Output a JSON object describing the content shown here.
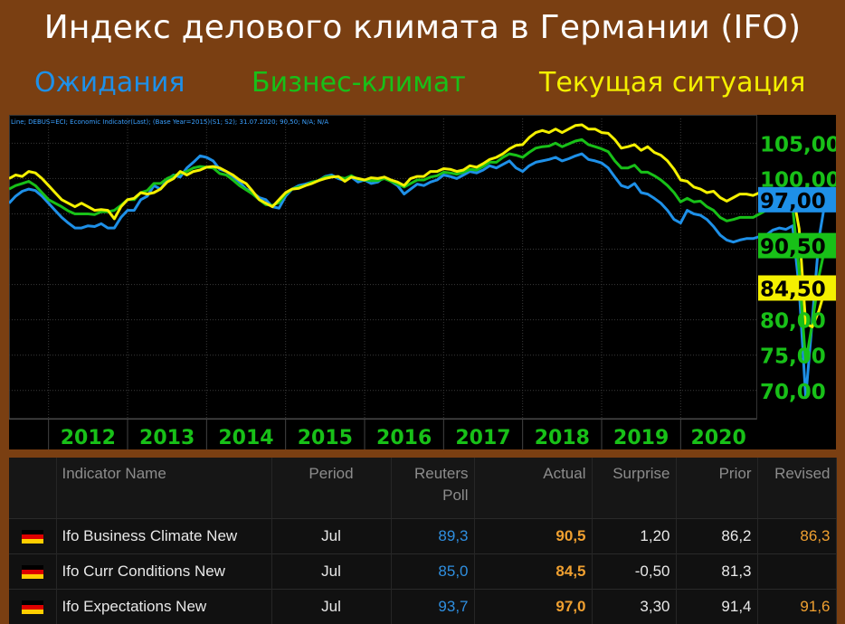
{
  "header": {
    "title": "Индекс делового климата в Германии (IFO)",
    "legend": [
      {
        "label": "Ожидания",
        "color": "#1e90e8"
      },
      {
        "label": "Бизнес-климат",
        "color": "#18c018"
      },
      {
        "label": "Текущая ситуация",
        "color": "#f4f000"
      }
    ]
  },
  "chart_info": "Line; DEBUS=ECI; Economic Indicator(Last); (Base Year=2015)(S1; S2); 31.07.2020; 90,50; N/A; N/A",
  "chart_data": {
    "type": "line",
    "x_start": "2011-07",
    "x_end": "2020-07",
    "x_labels": [
      "2012",
      "2013",
      "2014",
      "2015",
      "2016",
      "2017",
      "2018",
      "2019",
      "2020"
    ],
    "y_ticks": [
      "70,00",
      "75,00",
      "80,00",
      "100,00",
      "105,00"
    ],
    "y_tick_values": [
      70,
      75,
      80,
      100,
      105
    ],
    "ylim": [
      66,
      108.5
    ],
    "grid": true,
    "last_value_labels": [
      {
        "text": "97,00",
        "value": 97.0,
        "bg": "#1e90e8",
        "fg": "#000000"
      },
      {
        "text": "90,50",
        "value": 90.5,
        "bg": "#18c018",
        "fg": "#000000"
      },
      {
        "text": "84,50",
        "value": 84.5,
        "bg": "#f4f000",
        "fg": "#000000"
      }
    ],
    "series": [
      {
        "color": "#1e90e8",
        "values": [
          96.5,
          97.5,
          98.2,
          98.5,
          98.3,
          97.5,
          96.5,
          95.5,
          94.5,
          93.7,
          93.0,
          93.0,
          93.3,
          93.2,
          93.6,
          93.0,
          93.0,
          94.5,
          95.5,
          95.5,
          97.0,
          97.5,
          99.0,
          98.5,
          99.8,
          100.5,
          100.2,
          101.5,
          102.3,
          103.2,
          103.0,
          102.5,
          101.3,
          101.0,
          100.3,
          99.5,
          98.5,
          98.0,
          97.3,
          97.0,
          96.0,
          95.8,
          97.5,
          98.5,
          99.0,
          99.2,
          99.5,
          99.7,
          100.3,
          100.5,
          100.0,
          99.7,
          100.2,
          99.5,
          99.8,
          99.3,
          99.5,
          100.2,
          99.6,
          99.0,
          97.8,
          98.5,
          99.2,
          99.0,
          99.5,
          99.8,
          100.5,
          100.3,
          100.0,
          100.5,
          101.0,
          100.8,
          101.2,
          101.8,
          101.5,
          102.0,
          102.5,
          101.5,
          101.0,
          101.8,
          102.3,
          102.5,
          102.7,
          103.0,
          102.5,
          102.8,
          103.2,
          103.5,
          102.7,
          102.5,
          102.2,
          101.5,
          100.2,
          99.0,
          98.7,
          99.3,
          98.0,
          97.8,
          97.2,
          96.5,
          95.5,
          94.2,
          93.7,
          95.5,
          95.0,
          94.8,
          94.2,
          93.2,
          92.0,
          91.3,
          91.0,
          91.3,
          91.5,
          91.5,
          91.8,
          92.0,
          92.7,
          93.0,
          92.8,
          93.3,
          84.5,
          69.0,
          80.0,
          91.5,
          97.0
        ]
      },
      {
        "color": "#18c018",
        "values": [
          98.5,
          99.0,
          99.3,
          99.6,
          99.0,
          98.0,
          97.0,
          96.5,
          96.0,
          95.4,
          95.0,
          95.0,
          95.0,
          94.9,
          95.3,
          95.3,
          95.5,
          96.2,
          97.0,
          97.0,
          98.0,
          98.3,
          99.3,
          99.3,
          100.0,
          100.4,
          100.7,
          101.0,
          101.5,
          101.7,
          101.6,
          101.5,
          100.7,
          100.5,
          99.8,
          99.0,
          98.4,
          97.8,
          97.0,
          96.3,
          96.2,
          96.6,
          97.8,
          98.5,
          98.8,
          99.0,
          99.5,
          99.7,
          100.2,
          100.3,
          100.2,
          100.0,
          100.4,
          99.9,
          99.8,
          99.7,
          99.7,
          100.0,
          99.6,
          99.2,
          98.8,
          99.3,
          99.8,
          99.8,
          100.2,
          100.4,
          100.9,
          100.8,
          100.6,
          100.9,
          101.3,
          101.2,
          101.7,
          102.3,
          102.3,
          103.0,
          103.5,
          103.3,
          103.0,
          103.7,
          104.3,
          104.5,
          104.6,
          105.0,
          104.5,
          104.9,
          105.3,
          105.5,
          104.8,
          104.5,
          104.2,
          103.8,
          102.5,
          101.5,
          101.5,
          101.9,
          100.9,
          100.9,
          100.4,
          99.8,
          99.0,
          98.0,
          96.7,
          97.2,
          96.7,
          96.8,
          96.0,
          95.5,
          94.5,
          94.0,
          94.2,
          94.5,
          94.5,
          94.5,
          95.0,
          95.5,
          95.9,
          96.0,
          96.0,
          96.0,
          87.0,
          74.0,
          79.5,
          86.2,
          90.5
        ]
      },
      {
        "color": "#f4f000",
        "values": [
          100.0,
          100.5,
          100.3,
          101.0,
          100.8,
          100.0,
          99.0,
          98.0,
          97.0,
          96.5,
          96.0,
          96.5,
          96.0,
          95.5,
          95.6,
          95.5,
          94.3,
          96.0,
          97.0,
          97.2,
          98.0,
          97.8,
          98.0,
          98.5,
          99.5,
          100.0,
          101.0,
          100.5,
          101.0,
          101.2,
          101.6,
          101.7,
          101.5,
          101.0,
          100.5,
          99.8,
          99.3,
          98.2,
          97.0,
          96.5,
          96.0,
          97.0,
          98.0,
          98.5,
          98.6,
          99.0,
          99.3,
          99.7,
          100.0,
          100.2,
          100.3,
          99.6,
          100.2,
          100.0,
          99.8,
          100.1,
          100.0,
          100.2,
          99.8,
          99.5,
          99.0,
          100.0,
          100.3,
          100.3,
          101.0,
          101.0,
          101.4,
          101.3,
          101.0,
          101.2,
          101.8,
          101.6,
          102.1,
          102.7,
          103.0,
          103.5,
          104.2,
          104.7,
          104.8,
          105.8,
          106.5,
          106.8,
          106.5,
          107.0,
          106.5,
          107.0,
          107.5,
          107.6,
          107.0,
          107.0,
          106.5,
          106.4,
          105.5,
          104.3,
          104.5,
          104.8,
          104.0,
          104.5,
          103.7,
          103.3,
          102.5,
          101.3,
          99.8,
          99.6,
          98.8,
          98.5,
          98.0,
          98.2,
          97.3,
          96.8,
          97.3,
          97.8,
          97.8,
          97.6,
          98.0,
          98.4,
          98.5,
          98.3,
          98.4,
          98.0,
          92.9,
          79.4,
          79.0,
          81.3,
          84.5
        ]
      }
    ]
  },
  "table": {
    "headers": [
      "",
      "Indicator Name",
      "Period",
      "Reuters Poll",
      "Actual",
      "Surprise",
      "Prior",
      "Revised"
    ],
    "rows": [
      {
        "name": "Ifo Business Climate New",
        "period": "Jul",
        "poll": "89,3",
        "actual": "90,5",
        "surprise": "1,20",
        "prior": "86,2",
        "revised": "86,3"
      },
      {
        "name": "Ifo Curr Conditions New",
        "period": "Jul",
        "poll": "85,0",
        "actual": "84,5",
        "surprise": "-0,50",
        "prior": "81,3",
        "revised": ""
      },
      {
        "name": "Ifo Expectations New",
        "period": "Jul",
        "poll": "93,7",
        "actual": "97,0",
        "surprise": "3,30",
        "prior": "91,4",
        "revised": "91,6"
      }
    ]
  },
  "flag_colors": [
    "#000000",
    "#dd0000",
    "#ffce00"
  ]
}
